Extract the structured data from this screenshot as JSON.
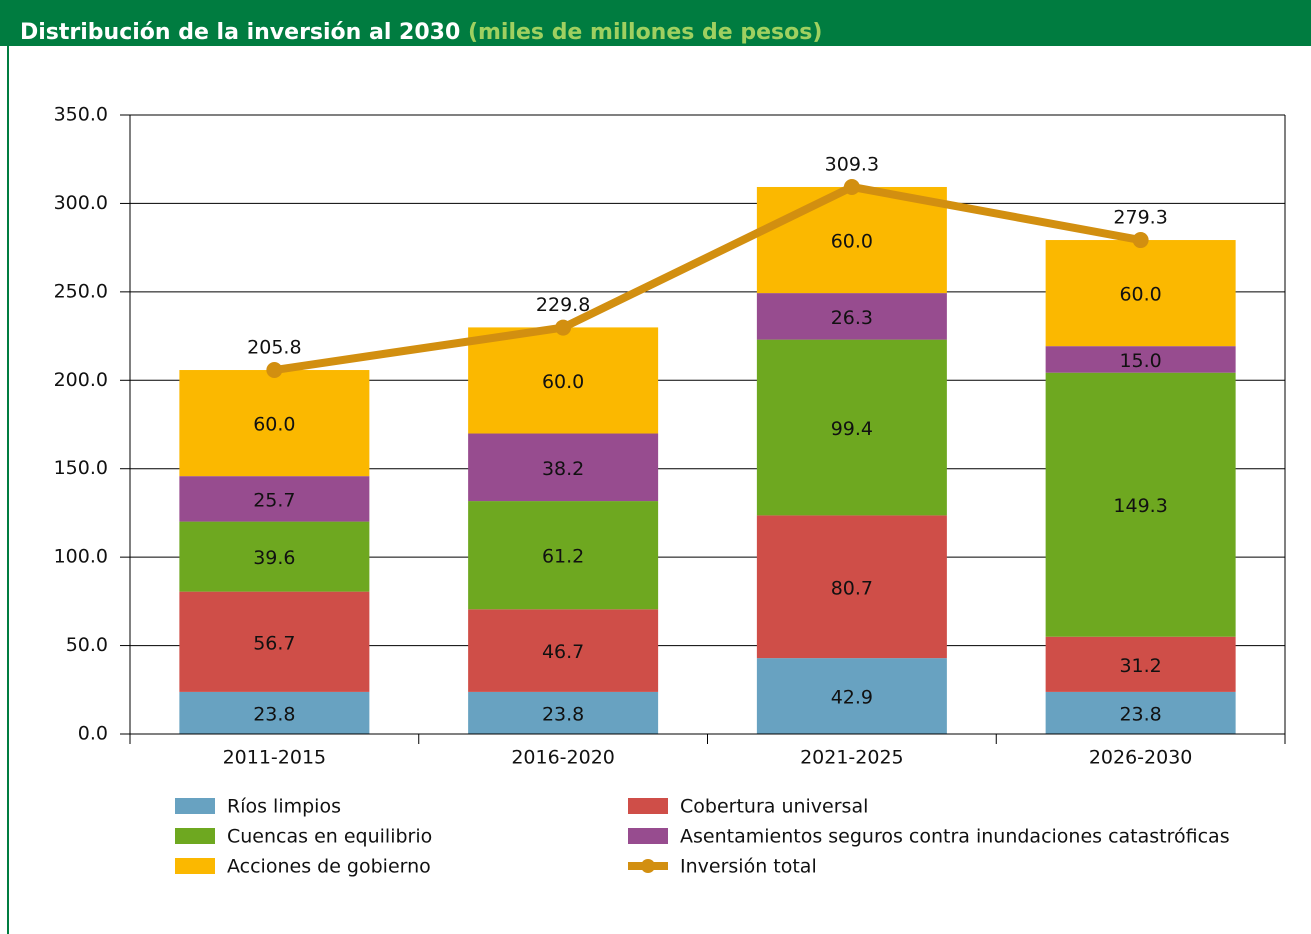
{
  "chart_data": {
    "type": "bar",
    "stacked": true,
    "title": "Distribución de la inversión al 2030",
    "subtitle": "(miles de millones de pesos)",
    "categories": [
      "2011-2015",
      "2016-2020",
      "2021-2025",
      "2026-2030"
    ],
    "ylim": [
      0,
      350
    ],
    "yticks": [
      {
        "value": 0,
        "label": "0.0"
      },
      {
        "value": 50,
        "label": "50.0"
      },
      {
        "value": 100,
        "label": "100.0"
      },
      {
        "value": 150,
        "label": "150.0"
      },
      {
        "value": 200,
        "label": "200.0"
      },
      {
        "value": 250,
        "label": "250.0"
      },
      {
        "value": 300,
        "label": "300.0"
      },
      {
        "value": 350,
        "label": "350.0"
      }
    ],
    "grid": true,
    "series": [
      {
        "name": "Ríos limpios",
        "color": "#68a2c1",
        "values": [
          23.8,
          23.8,
          42.9,
          23.8
        ]
      },
      {
        "name": "Cobertura universal",
        "color": "#cf4e48",
        "values": [
          56.7,
          46.7,
          80.7,
          31.2
        ]
      },
      {
        "name": "Cuencas en equilibrio",
        "color": "#6ea820",
        "values": [
          39.6,
          61.2,
          99.4,
          149.3
        ]
      },
      {
        "name": "Asentamientos seguros contra inundaciones catastróficas",
        "color": "#974c8f",
        "values": [
          25.7,
          38.2,
          26.3,
          15
        ],
        "value_labels": [
          "25.7",
          "38.2",
          "26.3",
          "15.0"
        ]
      },
      {
        "name": "Acciones de gobierno",
        "color": "#fbb800",
        "values": [
          60,
          60,
          60,
          60
        ],
        "value_labels": [
          "60.0",
          "60.0",
          "60.0",
          "60.0"
        ]
      },
      {
        "name": "Inversión total",
        "color": "#d28f10",
        "type": "line",
        "values": [
          205.8,
          229.8,
          309.3,
          279.3
        ]
      }
    ]
  }
}
